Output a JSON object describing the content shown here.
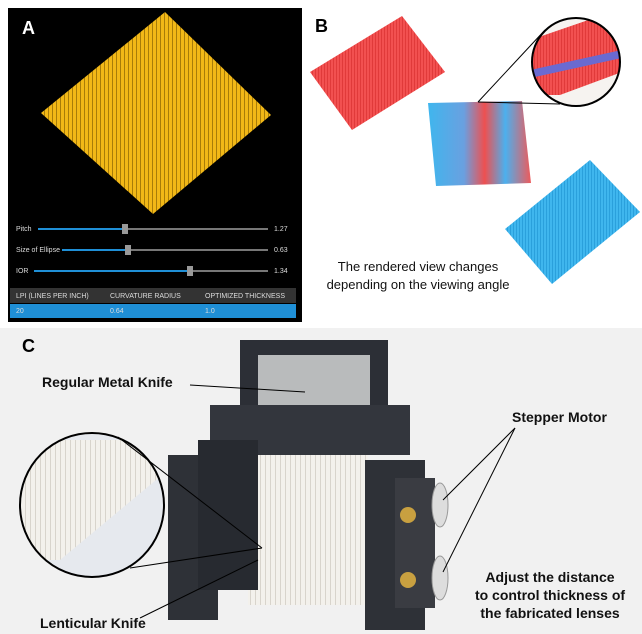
{
  "panels": {
    "a": {
      "label": "A",
      "sliders": [
        {
          "label": "Pitch",
          "value": "1.27"
        },
        {
          "label": "Size of Ellipse",
          "value": "0.63"
        },
        {
          "label": "IOR",
          "value": "1.34"
        }
      ],
      "table": {
        "header": [
          "LPI   (LINES PER INCH)",
          "CURVATURE RADIUS",
          "OPTIMIZED THICKNESS"
        ],
        "rows": [
          [
            "20",
            "0.64",
            "1.0"
          ]
        ]
      }
    },
    "b": {
      "label": "B",
      "caption": [
        "The rendered view changes",
        "depending on the viewing angle"
      ]
    },
    "c": {
      "label": "C",
      "annotations": {
        "regular_knife": "Regular Metal Knife",
        "stepper_motor": "Stepper Motor",
        "lenticular_knife": "Lenticular Knife",
        "adjust": [
          "Adjust the distance",
          "to control thickness of",
          "the fabricated lenses"
        ]
      }
    }
  }
}
